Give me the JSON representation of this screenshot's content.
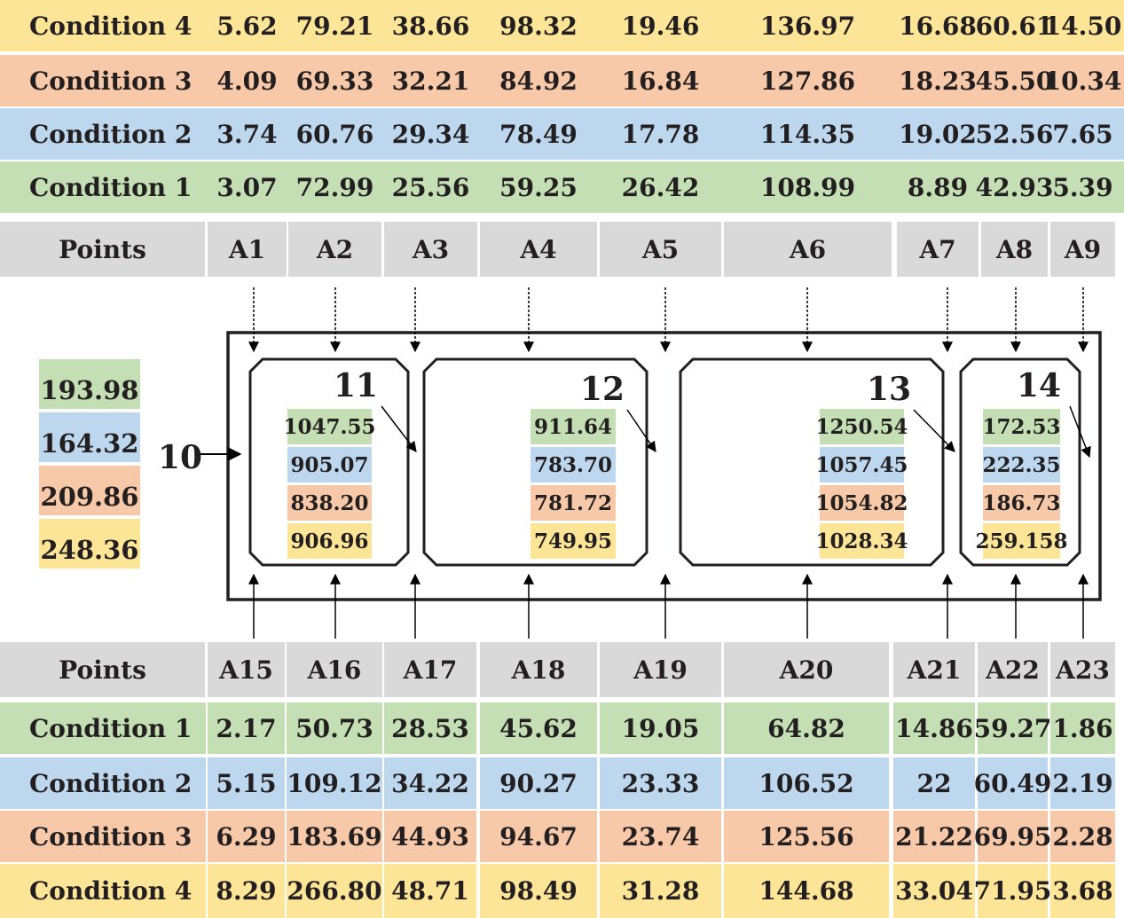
{
  "colors": {
    "condition_1": "#c4dfb4",
    "condition_2": "#bdd7ee",
    "condition_3": "#f7c9a9",
    "condition_4": "#fde597",
    "header": "#d9d9d9"
  },
  "top_table": {
    "header": {
      "label": "Points",
      "points": [
        "A1",
        "A2",
        "A3",
        "A4",
        "A5",
        "A6",
        "A7",
        "A8",
        "A9"
      ]
    },
    "rows": [
      {
        "label": "Condition 4",
        "values": [
          "5.62",
          "79.21",
          "38.66",
          "98.32",
          "19.46",
          "136.97",
          "16.68",
          "60.61",
          "14.50"
        ]
      },
      {
        "label": "Condition 3",
        "values": [
          "4.09",
          "69.33",
          "32.21",
          "84.92",
          "16.84",
          "127.86",
          "18.23",
          "45.50",
          "10.34"
        ]
      },
      {
        "label": "Condition 2",
        "values": [
          "3.74",
          "60.76",
          "29.34",
          "78.49",
          "17.78",
          "114.35",
          "19.02",
          "52.56",
          "7.65"
        ]
      },
      {
        "label": "Condition 1",
        "values": [
          "3.07",
          "72.99",
          "25.56",
          "59.25",
          "26.42",
          "108.99",
          "8.89",
          "42.93",
          "5.39"
        ]
      }
    ]
  },
  "bottom_table": {
    "header": {
      "label": "Points",
      "points": [
        "A15",
        "A16",
        "A17",
        "A18",
        "A19",
        "A20",
        "A21",
        "A22",
        "A23"
      ]
    },
    "rows": [
      {
        "label": "Condition 1",
        "values": [
          "2.17",
          "50.73",
          "28.53",
          "45.62",
          "19.05",
          "64.82",
          "14.86",
          "59.27",
          "1.86"
        ]
      },
      {
        "label": "Condition 2",
        "values": [
          "5.15",
          "109.12",
          "34.22",
          "90.27",
          "23.33",
          "106.52",
          "22",
          "60.49",
          "2.19"
        ]
      },
      {
        "label": "Condition 3",
        "values": [
          "6.29",
          "183.69",
          "44.93",
          "94.67",
          "23.74",
          "125.56",
          "21.22",
          "69.95",
          "2.28"
        ]
      },
      {
        "label": "Condition 4",
        "values": [
          "8.29",
          "266.80",
          "48.71",
          "98.49",
          "31.28",
          "144.68",
          "33.04",
          "71.95",
          "3.68"
        ]
      }
    ]
  },
  "outer_box": {
    "label": "10",
    "values": [
      "193.98",
      "164.32",
      "209.86",
      "248.36"
    ]
  },
  "cells": [
    {
      "label": "11",
      "values": [
        "1047.55",
        "905.07",
        "838.20",
        "906.96"
      ]
    },
    {
      "label": "12",
      "values": [
        "911.64",
        "783.70",
        "781.72",
        "749.95"
      ]
    },
    {
      "label": "13",
      "values": [
        "1250.54",
        "1057.45",
        "1054.82",
        "1028.34"
      ]
    },
    {
      "label": "14",
      "values": [
        "172.53",
        "222.35",
        "186.73",
        "259.158"
      ]
    }
  ]
}
